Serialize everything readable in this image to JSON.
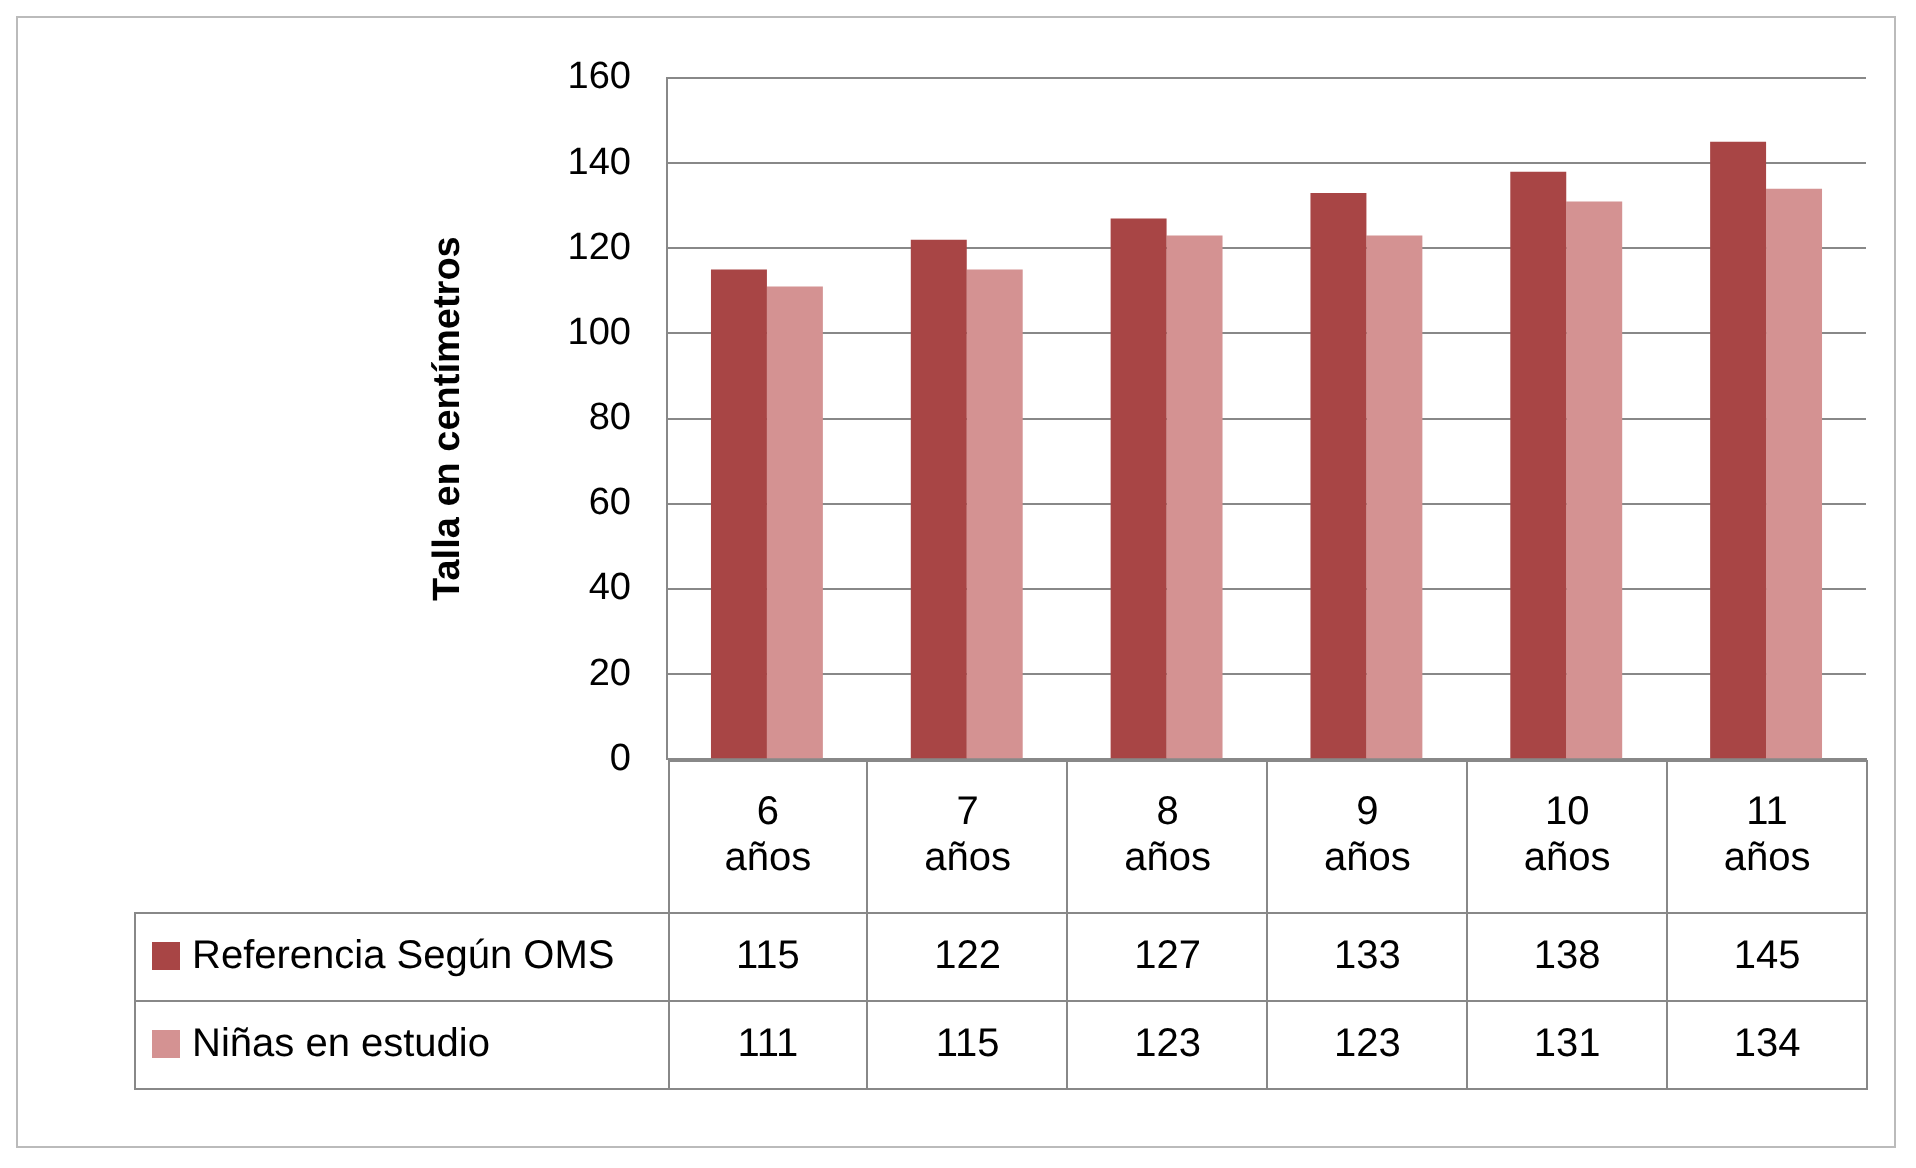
{
  "chart_data": {
    "type": "bar",
    "ylabel": "Talla en centímetros",
    "categories": [
      "6 años",
      "7 años",
      "8 años",
      "9 años",
      "10 años",
      "11 años"
    ],
    "series": [
      {
        "name": "Referencia Según OMS",
        "color": "#a84545",
        "values": [
          115,
          122,
          127,
          133,
          138,
          145
        ]
      },
      {
        "name": "Niñas en estudio",
        "color": "#d49292",
        "values": [
          111,
          115,
          123,
          123,
          131,
          134
        ]
      }
    ],
    "ylim": [
      0,
      160
    ],
    "yticks": [
      0,
      20,
      40,
      60,
      80,
      100,
      120,
      140,
      160
    ],
    "grid": "y",
    "legend": "bottom left",
    "data_labels": true
  }
}
